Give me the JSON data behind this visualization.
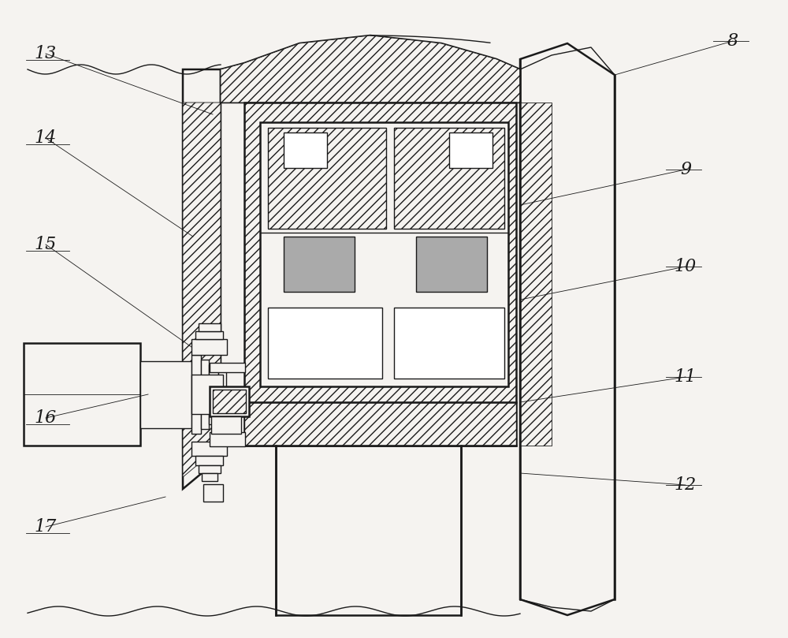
{
  "bg_color": "#f5f3f0",
  "line_color": "#1a1a1a",
  "figsize": [
    10.0,
    8.09
  ],
  "dpi": 100
}
